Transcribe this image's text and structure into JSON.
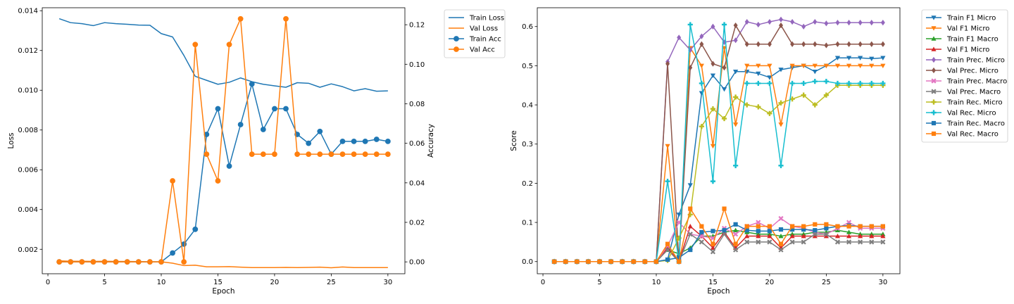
{
  "chart_data": [
    {
      "type": "line",
      "xlabel": "Epoch",
      "ylabel": "Loss",
      "y2label": "Accuracy",
      "xlim": [
        -0.5,
        31.5
      ],
      "xticks": [
        0,
        5,
        10,
        15,
        20,
        25,
        30
      ],
      "ylim": [
        0.00077,
        0.01415
      ],
      "yticks": [
        0.002,
        0.004,
        0.006,
        0.008,
        0.01,
        0.012,
        0.014
      ],
      "y2lim": [
        -0.006,
        0.1286
      ],
      "y2ticks": [
        0.0,
        0.02,
        0.04,
        0.06,
        0.08,
        0.1,
        0.12
      ],
      "legend_position": "outside-right-top",
      "grid": false,
      "x": [
        1,
        2,
        3,
        4,
        5,
        6,
        7,
        8,
        9,
        10,
        11,
        12,
        13,
        14,
        15,
        16,
        17,
        18,
        19,
        20,
        21,
        22,
        23,
        24,
        25,
        26,
        27,
        28,
        29,
        30
      ],
      "series": [
        {
          "name": "Train Loss",
          "axis": "left",
          "color": "#1f77b4",
          "marker": "none",
          "values": [
            0.0136,
            0.0134,
            0.01335,
            0.01325,
            0.0134,
            0.01335,
            0.01332,
            0.01328,
            0.01327,
            0.01285,
            0.01268,
            0.01175,
            0.0107,
            0.0105,
            0.0103,
            0.0104,
            0.01062,
            0.01043,
            0.0103,
            0.01022,
            0.01015,
            0.01038,
            0.01035,
            0.01015,
            0.01032,
            0.01018,
            0.00997,
            0.01008,
            0.00995,
            0.00997
          ]
        },
        {
          "name": "Val Loss",
          "axis": "left",
          "color": "#ff7f0e",
          "marker": "none",
          "values": [
            0.00142,
            0.0014,
            0.0014,
            0.00139,
            0.0014,
            0.00139,
            0.00139,
            0.00138,
            0.00137,
            0.00137,
            0.0013,
            0.00118,
            0.0012,
            0.00112,
            0.00112,
            0.00113,
            0.0011,
            0.00108,
            0.00108,
            0.00108,
            0.00109,
            0.00108,
            0.00109,
            0.0011,
            0.00107,
            0.00111,
            0.00108,
            0.00108,
            0.00108,
            0.00108
          ]
        },
        {
          "name": "Train Acc",
          "axis": "right",
          "color": "#1f77b4",
          "marker": "circle",
          "values": [
            0,
            0,
            0,
            0,
            0,
            0,
            0,
            0,
            0,
            0,
            0.0045,
            0.009,
            0.0165,
            0.0645,
            0.0775,
            0.0485,
            0.0695,
            0.09,
            0.067,
            0.0775,
            0.0775,
            0.0645,
            0.06,
            0.066,
            0.0545,
            0.061,
            0.061,
            0.061,
            0.062,
            0.061
          ]
        },
        {
          "name": "Val Acc",
          "axis": "right",
          "color": "#ff7f0e",
          "marker": "circle",
          "values": [
            0,
            0,
            0,
            0,
            0,
            0,
            0,
            0,
            0,
            0,
            0.041,
            0.0,
            0.11,
            0.0545,
            0.041,
            0.11,
            0.123,
            0.0545,
            0.0545,
            0.0545,
            0.123,
            0.0545,
            0.0545,
            0.0545,
            0.0545,
            0.0545,
            0.0545,
            0.0545,
            0.0545,
            0.0545
          ]
        }
      ]
    },
    {
      "type": "line",
      "xlabel": "Epoch",
      "ylabel": "Score",
      "xlim": [
        -0.5,
        31.5
      ],
      "xticks": [
        0,
        5,
        10,
        15,
        20,
        25,
        30
      ],
      "ylim": [
        -0.031,
        0.648
      ],
      "yticks": [
        0.0,
        0.1,
        0.2,
        0.3,
        0.4,
        0.5,
        0.6
      ],
      "legend_position": "outside-right-top",
      "grid": false,
      "x": [
        1,
        2,
        3,
        4,
        5,
        6,
        7,
        8,
        9,
        10,
        11,
        12,
        13,
        14,
        15,
        16,
        17,
        18,
        19,
        20,
        21,
        22,
        23,
        24,
        25,
        26,
        27,
        28,
        29,
        30
      ],
      "series": [
        {
          "name": "Train F1 Micro",
          "color": "#1f77b4",
          "marker": "triangle_down",
          "values": [
            0,
            0,
            0,
            0,
            0,
            0,
            0,
            0,
            0,
            0,
            0.005,
            0.12,
            0.195,
            0.43,
            0.475,
            0.44,
            0.485,
            0.485,
            0.48,
            0.47,
            0.49,
            0.495,
            0.5,
            0.485,
            0.5,
            0.52,
            0.52,
            0.52,
            0.518,
            0.52
          ]
        },
        {
          "name": "Val F1 Micro",
          "color": "#ff7f0e",
          "marker": "triangle_down",
          "values": [
            0,
            0,
            0,
            0,
            0,
            0,
            0,
            0,
            0,
            0,
            0.295,
            0.0,
            0.545,
            0.5,
            0.295,
            0.545,
            0.35,
            0.5,
            0.5,
            0.5,
            0.35,
            0.5,
            0.5,
            0.5,
            0.5,
            0.5,
            0.5,
            0.5,
            0.5,
            0.5
          ]
        },
        {
          "name": "Train F1 Macro",
          "color": "#2ca02c",
          "marker": "triangle_up",
          "values": [
            0,
            0,
            0,
            0,
            0,
            0,
            0,
            0,
            0,
            0,
            0.03,
            0.02,
            0.035,
            0.065,
            0.065,
            0.075,
            0.08,
            0.075,
            0.07,
            0.07,
            0.065,
            0.07,
            0.07,
            0.075,
            0.075,
            0.08,
            0.075,
            0.07,
            0.07,
            0.07
          ]
        },
        {
          "name": "Val F1 Micro",
          "color": "#d62728",
          "marker": "triangle_up",
          "values": [
            0,
            0,
            0,
            0,
            0,
            0,
            0,
            0,
            0,
            0,
            0.035,
            0.0,
            0.09,
            0.065,
            0.035,
            0.075,
            0.035,
            0.065,
            0.065,
            0.065,
            0.035,
            0.065,
            0.065,
            0.065,
            0.065,
            0.065,
            0.065,
            0.065,
            0.065,
            0.065
          ]
        },
        {
          "name": "Train Prec. Micro",
          "color": "#9467bd",
          "marker": "diamond",
          "values": [
            0,
            0,
            0,
            0,
            0,
            0,
            0,
            0,
            0,
            0,
            0.51,
            0.572,
            0.54,
            0.575,
            0.6,
            0.56,
            0.565,
            0.612,
            0.605,
            0.612,
            0.618,
            0.612,
            0.6,
            0.612,
            0.608,
            0.61,
            0.61,
            0.61,
            0.61,
            0.61
          ]
        },
        {
          "name": "Val Prec. Micro",
          "color": "#8c564b",
          "marker": "diamond",
          "values": [
            0,
            0,
            0,
            0,
            0,
            0,
            0,
            0,
            0,
            0,
            0.505,
            0.0,
            0.495,
            0.555,
            0.505,
            0.495,
            0.603,
            0.555,
            0.555,
            0.555,
            0.603,
            0.555,
            0.555,
            0.555,
            0.552,
            0.555,
            0.555,
            0.555,
            0.555,
            0.555
          ]
        },
        {
          "name": "Train Prec. Macro",
          "color": "#e377c2",
          "marker": "x",
          "values": [
            0,
            0,
            0,
            0,
            0,
            0,
            0,
            0,
            0,
            0,
            0.04,
            0.1,
            0.07,
            0.065,
            0.06,
            0.085,
            0.07,
            0.09,
            0.1,
            0.085,
            0.11,
            0.09,
            0.085,
            0.075,
            0.07,
            0.085,
            0.1,
            0.085,
            0.085,
            0.085
          ]
        },
        {
          "name": "Val Prec. Macro",
          "color": "#7f7f7f",
          "marker": "x",
          "values": [
            0,
            0,
            0,
            0,
            0,
            0,
            0,
            0,
            0,
            0,
            0.03,
            0.0,
            0.07,
            0.05,
            0.025,
            0.07,
            0.03,
            0.05,
            0.05,
            0.05,
            0.03,
            0.05,
            0.05,
            0.07,
            0.07,
            0.05,
            0.05,
            0.05,
            0.05,
            0.05
          ]
        },
        {
          "name": "Train Rec. Micro",
          "color": "#bcbd22",
          "marker": "plus",
          "values": [
            0,
            0,
            0,
            0,
            0,
            0,
            0,
            0,
            0,
            0,
            0.003,
            0.06,
            0.12,
            0.345,
            0.39,
            0.365,
            0.42,
            0.4,
            0.395,
            0.378,
            0.405,
            0.415,
            0.425,
            0.4,
            0.425,
            0.45,
            0.45,
            0.45,
            0.45,
            0.45
          ]
        },
        {
          "name": "Val Rec. Micro",
          "color": "#17becf",
          "marker": "plus",
          "values": [
            0,
            0,
            0,
            0,
            0,
            0,
            0,
            0,
            0,
            0,
            0.205,
            0.0,
            0.605,
            0.455,
            0.205,
            0.605,
            0.245,
            0.455,
            0.455,
            0.455,
            0.245,
            0.455,
            0.455,
            0.46,
            0.46,
            0.455,
            0.455,
            0.455,
            0.455,
            0.455
          ]
        },
        {
          "name": "Train Rec. Macro",
          "color": "#1f77b4",
          "marker": "square",
          "values": [
            0,
            0,
            0,
            0,
            0,
            0,
            0,
            0,
            0,
            0,
            0.005,
            0.01,
            0.03,
            0.075,
            0.078,
            0.08,
            0.095,
            0.08,
            0.078,
            0.078,
            0.082,
            0.082,
            0.082,
            0.08,
            0.085,
            0.09,
            0.092,
            0.09,
            0.09,
            0.09
          ]
        },
        {
          "name": "Val Rec. Macro",
          "color": "#ff7f0e",
          "marker": "square",
          "values": [
            0,
            0,
            0,
            0,
            0,
            0,
            0,
            0,
            0,
            0,
            0.045,
            0.0,
            0.135,
            0.09,
            0.045,
            0.135,
            0.045,
            0.09,
            0.09,
            0.09,
            0.045,
            0.09,
            0.09,
            0.095,
            0.095,
            0.09,
            0.09,
            0.09,
            0.09,
            0.09
          ]
        }
      ]
    }
  ]
}
